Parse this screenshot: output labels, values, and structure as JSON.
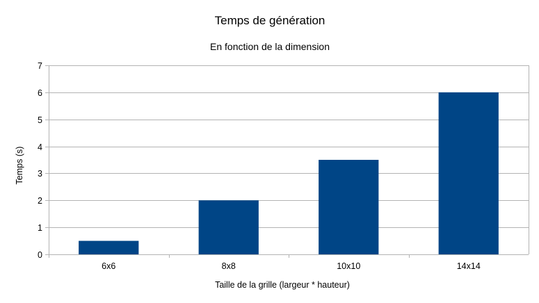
{
  "chart_data": {
    "type": "bar",
    "title": "Temps de génération",
    "subtitle": "En fonction de la dimension",
    "xlabel": "Taille de la grille (largeur * hauteur)",
    "ylabel": "Temps (s)",
    "categories": [
      "6x6",
      "8x8",
      "10x10",
      "14x14"
    ],
    "values": [
      0.5,
      2,
      3.5,
      6
    ],
    "ylim": [
      0,
      7
    ],
    "yticks": [
      0,
      1,
      2,
      3,
      4,
      5,
      6,
      7
    ],
    "grid": true,
    "bar_color": "#004586",
    "grid_color": "#b3b3b3"
  }
}
